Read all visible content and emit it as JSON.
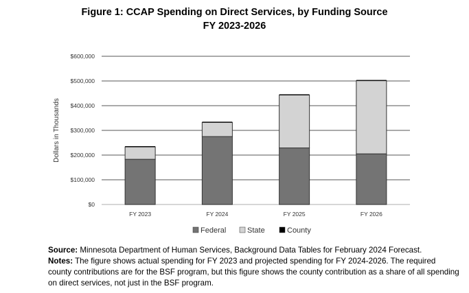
{
  "chart_data": {
    "type": "bar",
    "stacked": true,
    "title": "Figure 1: CCAP Spending on Direct Services, by Funding Source",
    "subtitle": "FY 2023-2026",
    "xlabel": "",
    "ylabel": "Dollars in Thousands",
    "ylim": [
      0,
      600000
    ],
    "yticks": [
      "$0",
      "$100,000",
      "$200,000",
      "$300,000",
      "$400,000",
      "$500,000",
      "$600,000"
    ],
    "ytick_values": [
      0,
      100000,
      200000,
      300000,
      400000,
      500000,
      600000
    ],
    "categories": [
      "FY 2023",
      "FY 2024",
      "FY 2025",
      "FY 2026"
    ],
    "series": [
      {
        "name": "Federal",
        "color": "#747474",
        "values": [
          183000,
          275000,
          229000,
          205000
        ]
      },
      {
        "name": "State",
        "color": "#d3d3d3",
        "values": [
          50000,
          57000,
          214000,
          296000
        ]
      },
      {
        "name": "County",
        "color": "#000000",
        "values": [
          3000,
          3000,
          3000,
          3000
        ]
      }
    ],
    "grid": true,
    "legend": "bottom"
  },
  "footer": {
    "source_label": "Source:",
    "source_text": " Minnesota Department of Human Services, Background Data Tables for February 2024 Forecast.",
    "notes_label": "Notes:",
    "notes_text": " The figure shows actual spending for FY 2023 and projected spending for FY 2024-2026. The required county contributions are for the BSF program, but this figure shows the county contribution as a share of all spending on direct services, not just in the BSF program."
  }
}
